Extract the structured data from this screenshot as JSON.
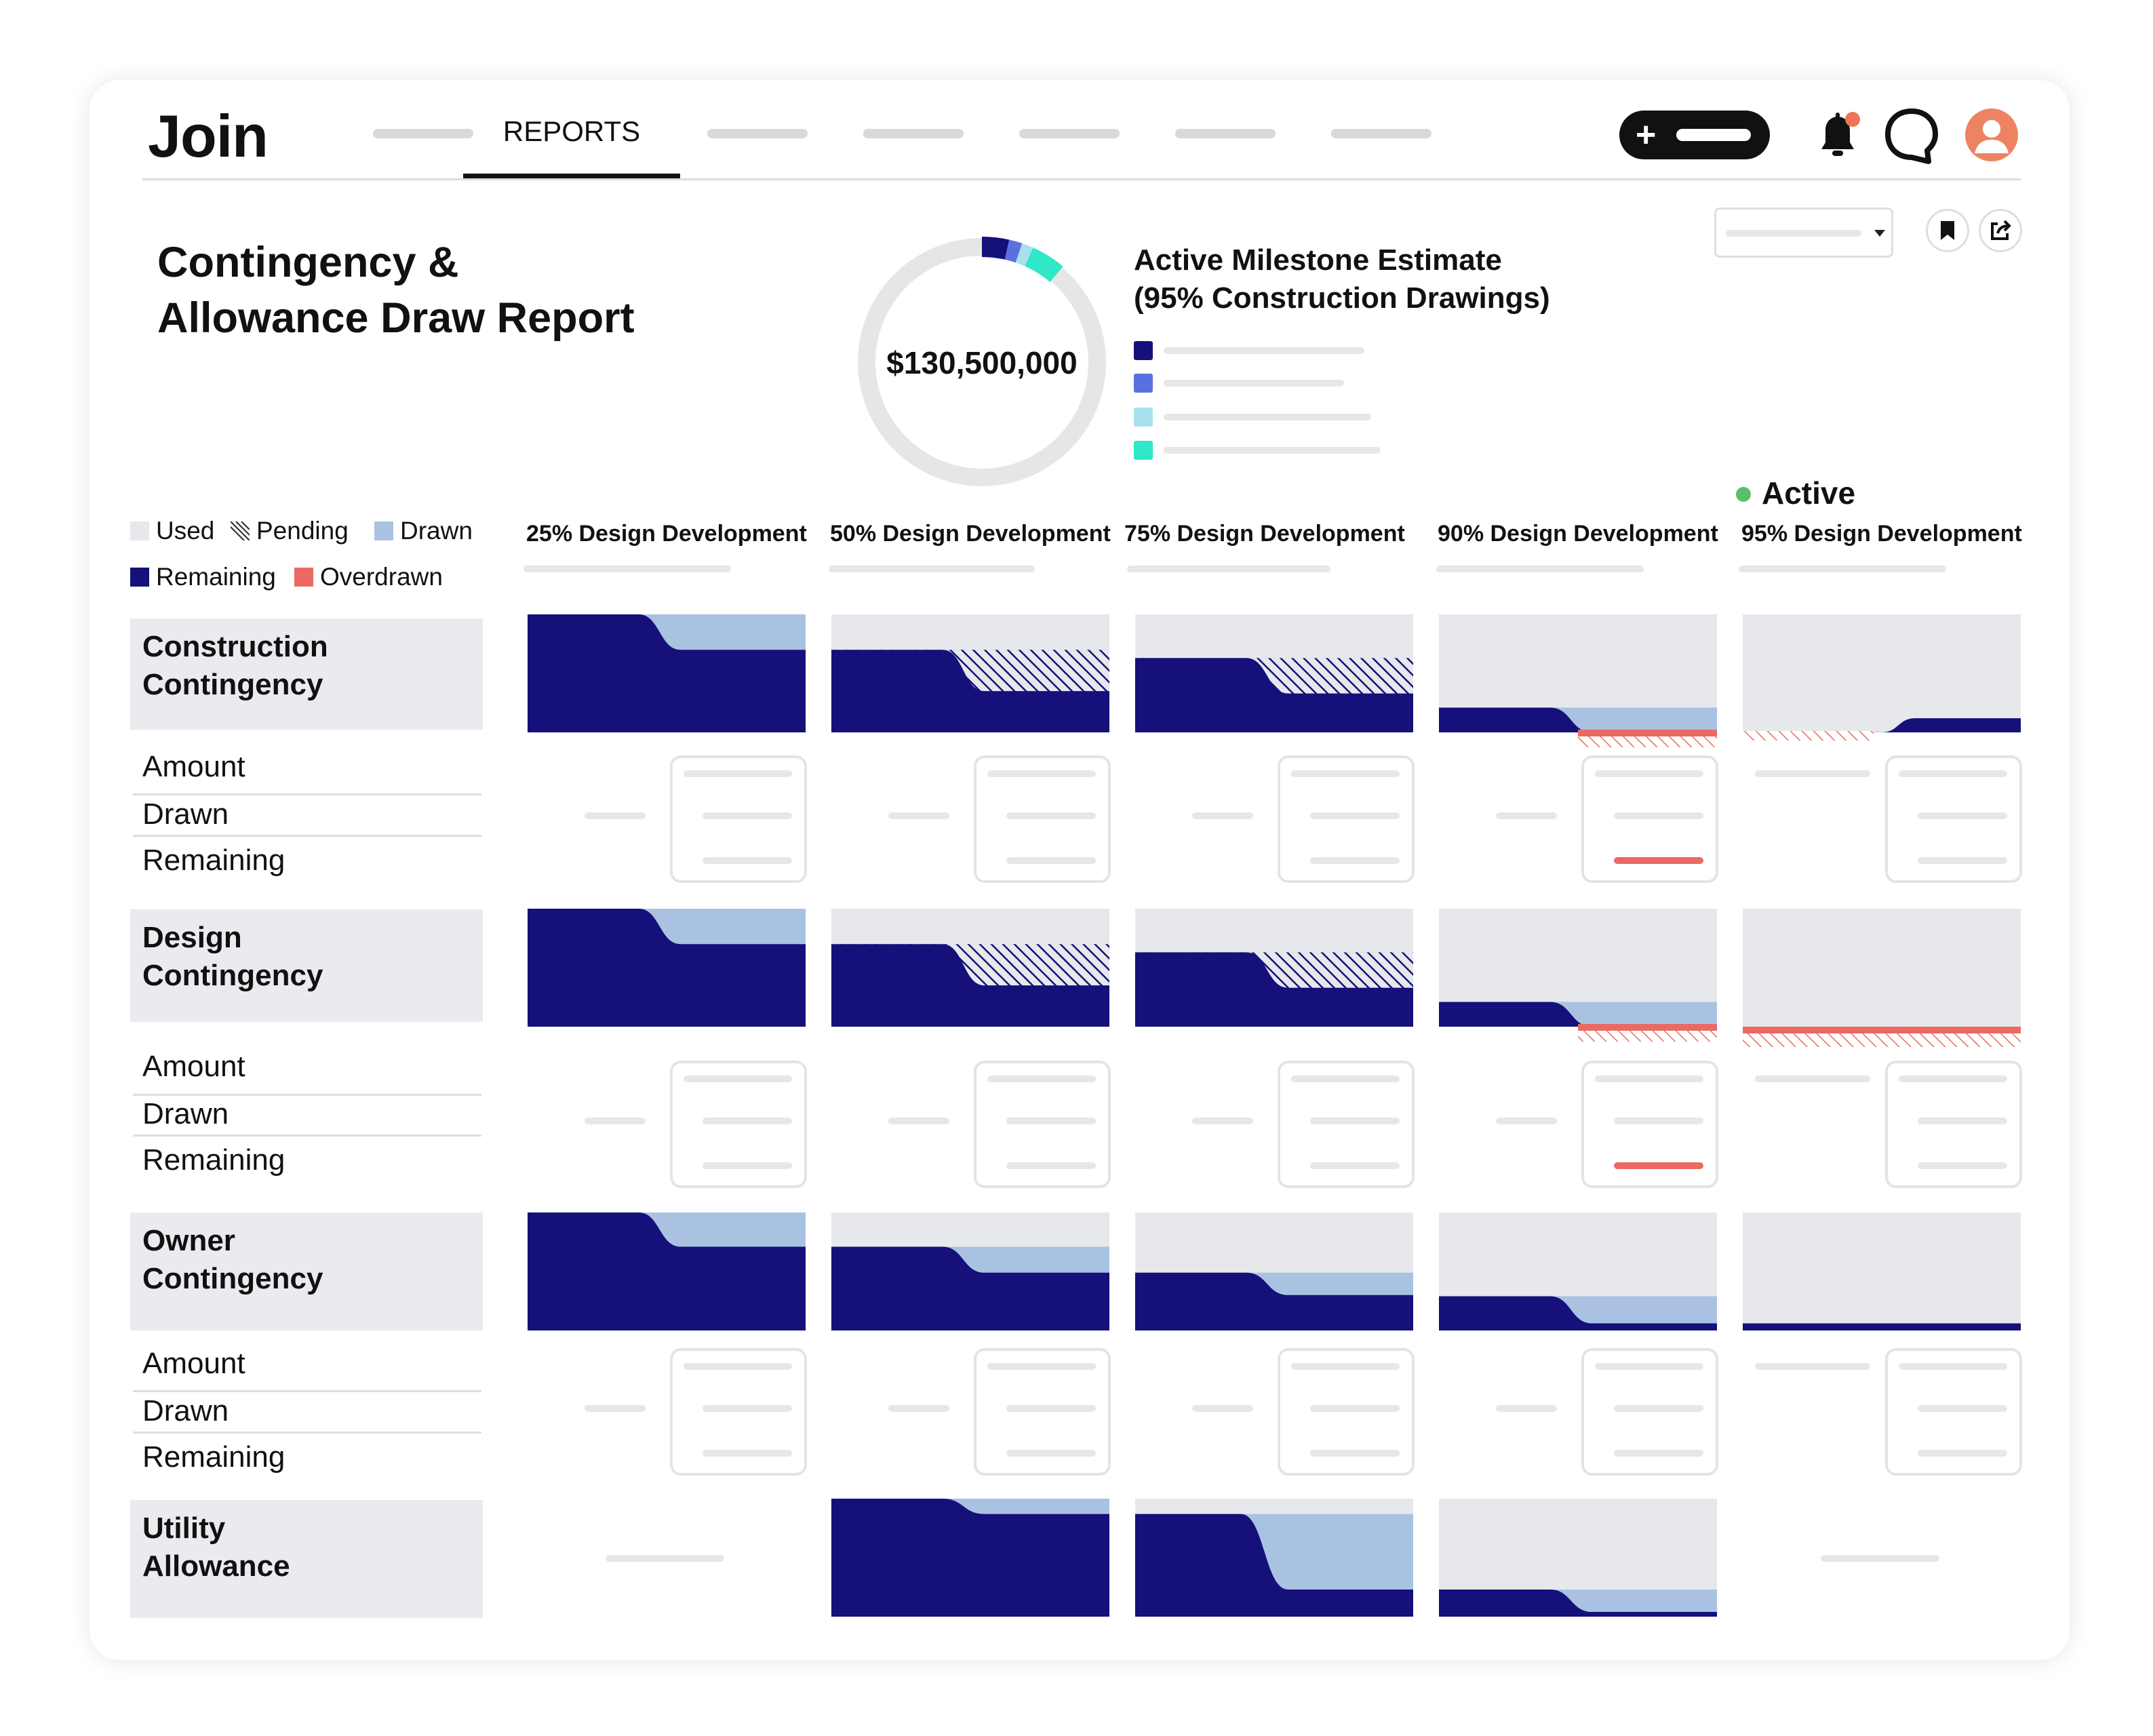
{
  "app": {
    "logo": "Join"
  },
  "nav": {
    "active_tab": "REPORTS"
  },
  "report": {
    "title_line1": "Contingency &",
    "title_line2": "Allowance Draw Report"
  },
  "summary": {
    "total": "$130,500,000",
    "milestone_title_line1": "Active Milestone Estimate",
    "milestone_title_line2": "(95% Construction Drawings)",
    "slices": [
      {
        "color": "#15107a",
        "fraction": 0.035
      },
      {
        "color": "#5b70e0",
        "fraction": 0.017
      },
      {
        "color": "#a8e0ee",
        "fraction": 0.015
      },
      {
        "color": "#2ee8c6",
        "fraction": 0.045
      }
    ]
  },
  "legend": {
    "used": "Used",
    "pending": "Pending",
    "drawn": "Drawn",
    "remaining": "Remaining",
    "overdrawn": "Overdrawn"
  },
  "colors": {
    "remaining": "#15107a",
    "drawn": "#a9c2e2",
    "used": "#e6e8ec",
    "overdrawn": "#ea6a63",
    "active": "#5cbd6a"
  },
  "active_label": "Active",
  "milestones": [
    "25% Design Development",
    "50% Design Development",
    "75% Design Development",
    "90% Design Development",
    "95% Design Development"
  ],
  "sub_labels": {
    "amount": "Amount",
    "drawn": "Drawn",
    "remaining": "Remaining"
  },
  "rows": [
    {
      "name_line1": "Construction",
      "name_line2": "Contingency",
      "has_details": true,
      "cells": [
        {
          "remaining": [
            1,
            0.7
          ],
          "drawn": [
            1,
            1
          ],
          "pending": null,
          "over": false,
          "detail_over": false
        },
        {
          "remaining": [
            0.7,
            0.35
          ],
          "drawn": [
            0.7,
            0.7
          ],
          "pending": [
            0.7,
            0.35
          ],
          "over": false,
          "detail_over": false
        },
        {
          "remaining": [
            0.63,
            0.33
          ],
          "drawn": [
            0.63,
            0.63
          ],
          "pending": [
            0.63,
            0.33
          ],
          "over": false,
          "detail_over": false
        },
        {
          "remaining": [
            0.21,
            0
          ],
          "drawn": [
            0.21,
            0.21
          ],
          "pending": null,
          "over": true,
          "detail_over": true
        },
        {
          "remaining": [
            0,
            0.12
          ],
          "drawn": null,
          "pending": null,
          "over": "left",
          "detail_over": false
        }
      ]
    },
    {
      "name_line1": "Design",
      "name_line2": "Contingency",
      "has_details": true,
      "cells": [
        {
          "remaining": [
            1,
            0.7
          ],
          "drawn": [
            1,
            1
          ],
          "pending": null,
          "over": false,
          "detail_over": false
        },
        {
          "remaining": [
            0.7,
            0.35
          ],
          "drawn": [
            0.7,
            0.7
          ],
          "pending": [
            0.7,
            0.35
          ],
          "over": false,
          "detail_over": false
        },
        {
          "remaining": [
            0.63,
            0.33
          ],
          "drawn": [
            0.63,
            0.63
          ],
          "pending": [
            0.63,
            0.33
          ],
          "over": false,
          "detail_over": false
        },
        {
          "remaining": [
            0.21,
            0
          ],
          "drawn": [
            0.21,
            0.21
          ],
          "pending": null,
          "over": true,
          "detail_over": true
        },
        {
          "remaining": null,
          "drawn": null,
          "pending": null,
          "over": "full",
          "detail_over": false
        }
      ]
    },
    {
      "name_line1": "Owner",
      "name_line2": "Contingency",
      "has_details": true,
      "cells": [
        {
          "remaining": [
            1,
            0.71
          ],
          "drawn": [
            1,
            1
          ],
          "pending": null,
          "over": false,
          "detail_over": false
        },
        {
          "remaining": [
            0.71,
            0.49
          ],
          "drawn": [
            0.71,
            0.71
          ],
          "pending": null,
          "over": false,
          "detail_over": false
        },
        {
          "remaining": [
            0.49,
            0.3
          ],
          "drawn": [
            0.49,
            0.49
          ],
          "pending": null,
          "over": false,
          "detail_over": false
        },
        {
          "remaining": [
            0.29,
            0.06
          ],
          "drawn": [
            0.29,
            0.29
          ],
          "pending": null,
          "over": false,
          "detail_over": false
        },
        {
          "remaining": [
            0.06,
            0.06
          ],
          "drawn": null,
          "pending": null,
          "over": false,
          "detail_over": false
        }
      ]
    },
    {
      "name_line1": "Utility",
      "name_line2": "Allowance",
      "has_details": false,
      "cells": [
        null,
        {
          "remaining": [
            1,
            0.87
          ],
          "drawn": [
            1,
            1
          ],
          "pending": null,
          "over": false
        },
        {
          "remaining": [
            0.87,
            0.23
          ],
          "drawn": [
            0.87,
            0.87
          ],
          "pending": null,
          "over": false
        },
        {
          "remaining": [
            0.23,
            0.04
          ],
          "drawn": [
            0.23,
            0.23
          ],
          "pending": null,
          "over": false
        },
        null
      ]
    }
  ]
}
